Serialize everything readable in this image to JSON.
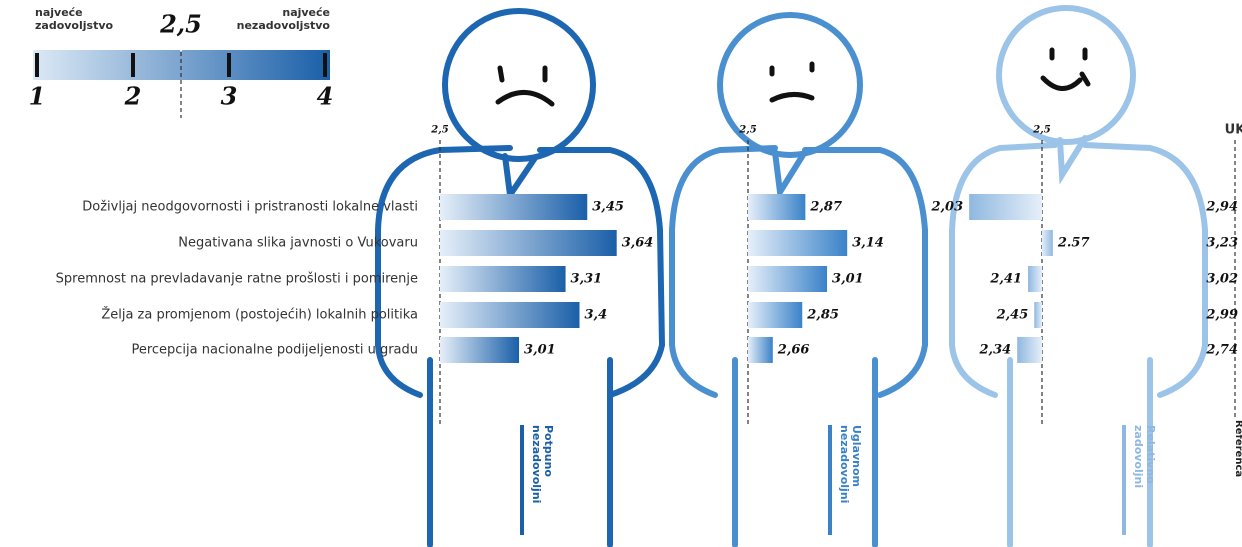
{
  "chart_data": {
    "type": "bar",
    "legend_scale": {
      "left_label": "najveće zadovoljstvo",
      "right_label": "najveće nezadovoljstvo",
      "lim": [
        1,
        4
      ],
      "ticks": [
        1,
        2,
        3,
        4
      ],
      "marker": {
        "value": 2.5,
        "label": "2,5"
      }
    },
    "baseline": {
      "value": 2.5,
      "label": "2,5"
    },
    "categories": [
      "Doživljaj neodgovornosti i pristranosti lokalne vlasti",
      "Negativana slika javnosti o Vukovaru",
      "Spremnost na prevladavanje ratne prošlosti i pomirenje",
      "Želja za promjenom (postojećih) lokalnih politika",
      "Percepcija nacionalne podijeljenosti u gradu"
    ],
    "series": [
      {
        "name": "Potpuno nezadovoljni",
        "color": "#1a5fa8",
        "values": [
          3.45,
          3.64,
          3.31,
          3.4,
          3.01
        ],
        "value_labels": [
          "3,45",
          "3,64",
          "3,31",
          "3,4",
          "3,01"
        ]
      },
      {
        "name": "Uglavnom nezadovoljni",
        "color": "#3a82c8",
        "values": [
          2.87,
          3.14,
          3.01,
          2.85,
          2.66
        ],
        "value_labels": [
          "2,87",
          "3,14",
          "3,01",
          "2,85",
          "2,66"
        ]
      },
      {
        "name": "Relativno zadovoljni",
        "color": "#8fb8e0",
        "values": [
          2.03,
          2.57,
          2.41,
          2.45,
          2.34
        ],
        "value_labels": [
          "2,03",
          "2.57",
          "2,41",
          "2,45",
          "2,34"
        ]
      }
    ],
    "reference": {
      "name": "UK",
      "label": "Referenca",
      "values": [
        2.94,
        3.23,
        3.02,
        2.99,
        2.74
      ],
      "value_labels": [
        "2,94",
        "3,23",
        "3,02",
        "2,99",
        "2,74"
      ]
    }
  }
}
